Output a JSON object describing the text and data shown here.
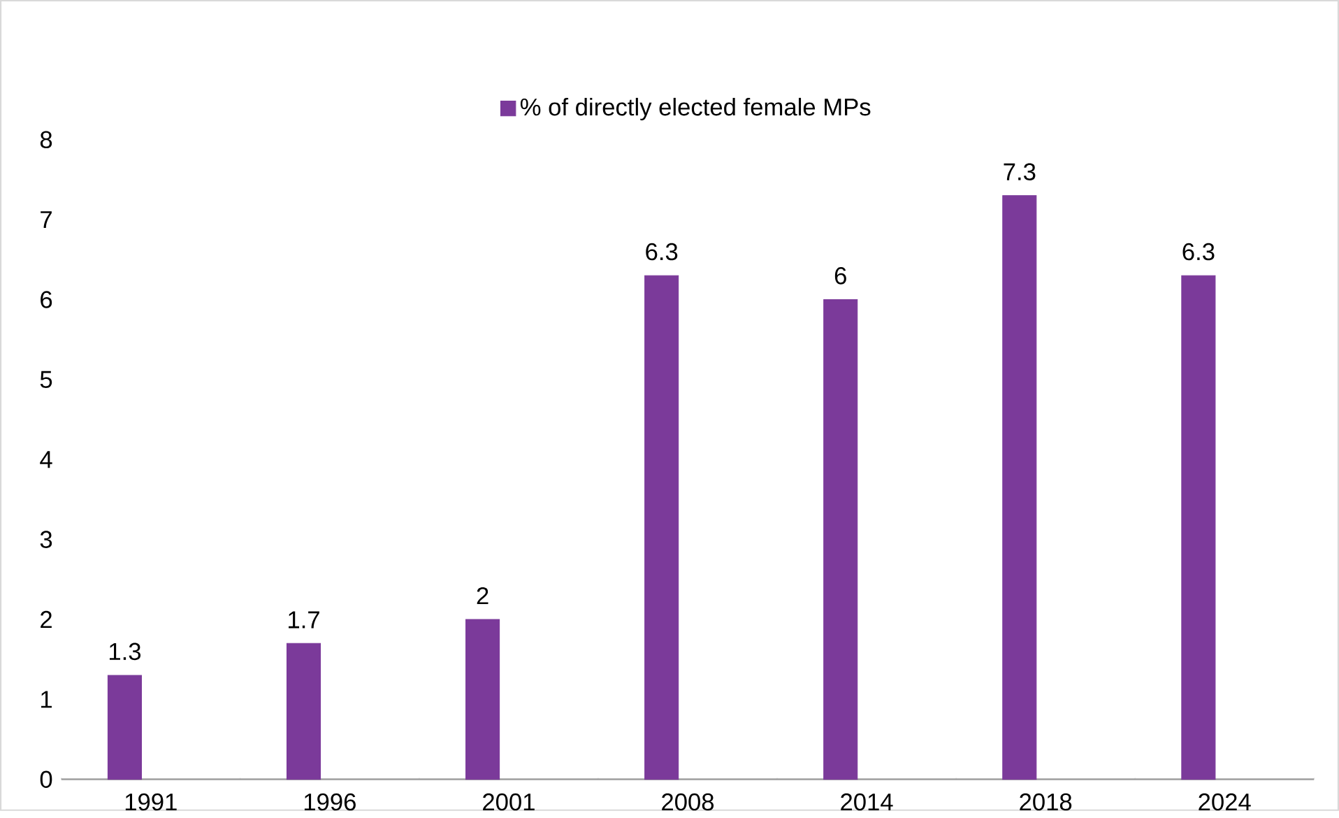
{
  "chart_data": {
    "type": "bar",
    "categories": [
      "1991",
      "1996",
      "2001",
      "2008",
      "2014",
      "2018",
      "2024"
    ],
    "series": [
      {
        "name": "% of directly elected female MPs",
        "color": "#7b3a9a",
        "values": [
          1.3,
          1.7,
          2,
          6.3,
          6,
          7.3,
          6.3
        ]
      }
    ],
    "ylim": [
      0,
      8
    ],
    "yticks": [
      0,
      1,
      2,
      3,
      4,
      5,
      6,
      7,
      8
    ],
    "data_labels": true,
    "legend": "top",
    "grid": false
  }
}
